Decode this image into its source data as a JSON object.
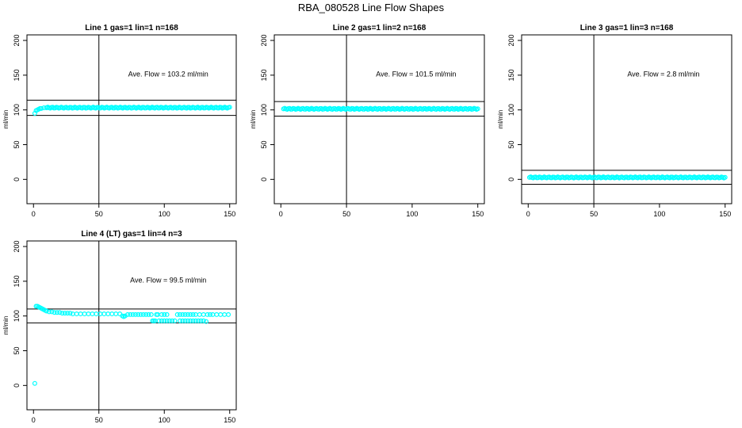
{
  "page": {
    "title": "RBA_080528  Line Flow Shapes"
  },
  "chart_data": [
    {
      "type": "scatter",
      "title": "Line 1 gas=1 lin=1 n=168",
      "ylabel": "ml/min",
      "annotation": "Ave. Flow =  103.2  ml/min",
      "xlim": [
        -5,
        155
      ],
      "ylim": [
        -35,
        208
      ],
      "xticks": [
        0,
        50,
        100,
        150
      ],
      "yticks": [
        0,
        50,
        100,
        150,
        200
      ],
      "vline": 50,
      "hlines": [
        92,
        114
      ],
      "point_color": "#00FFFF",
      "series": [
        {
          "x": [
            1,
            2,
            3,
            4,
            5,
            6,
            8,
            10
          ],
          "y": [
            95,
            99,
            100,
            101,
            102,
            102,
            103,
            103
          ]
        },
        {
          "x_range": [
            10,
            150
          ],
          "count": 150,
          "y": 103.2
        }
      ]
    },
    {
      "type": "scatter",
      "title": "Line 2 gas=1 lin=2 n=168",
      "ylabel": "ml/min",
      "annotation": "Ave. Flow =  101.5  ml/min",
      "xlim": [
        -5,
        155
      ],
      "ylim": [
        -35,
        208
      ],
      "xticks": [
        0,
        50,
        100,
        150
      ],
      "yticks": [
        0,
        50,
        100,
        150,
        200
      ],
      "vline": 50,
      "hlines": [
        91,
        112
      ],
      "point_color": "#00FFFF",
      "series": [
        {
          "x_range": [
            2,
            150
          ],
          "count": 160,
          "y": 101.5
        }
      ]
    },
    {
      "type": "scatter",
      "title": "Line 3 gas=1 lin=3 n=168",
      "ylabel": "ml/min",
      "annotation": "Ave. Flow =  2.8  ml/min",
      "xlim": [
        -5,
        155
      ],
      "ylim": [
        -35,
        208
      ],
      "xticks": [
        0,
        50,
        100,
        150
      ],
      "yticks": [
        0,
        50,
        100,
        150,
        200
      ],
      "vline": 50,
      "hlines": [
        -7,
        13
      ],
      "point_color": "#00FFFF",
      "series": [
        {
          "x_range": [
            1,
            150
          ],
          "count": 160,
          "y": 2.8
        }
      ]
    },
    {
      "type": "scatter",
      "title": "Line 4 (LT) gas=1 lin=4 n=3",
      "ylabel": "ml/min",
      "annotation": "Ave. Flow =  99.5  ml/min",
      "xlim": [
        -5,
        155
      ],
      "ylim": [
        -35,
        208
      ],
      "xticks": [
        0,
        50,
        100,
        150
      ],
      "yticks": [
        0,
        50,
        100,
        150,
        200
      ],
      "vline": 50,
      "hlines": [
        90,
        110
      ],
      "point_color": "#00FFFF",
      "series": [
        {
          "x": [
            1
          ],
          "y": [
            3
          ]
        },
        {
          "x": [
            2,
            3,
            4,
            5,
            6,
            7,
            8,
            9,
            10,
            12,
            14,
            16,
            18,
            20,
            22,
            24,
            26,
            28,
            30,
            33,
            36,
            39,
            42,
            45,
            48,
            51,
            54,
            57,
            60,
            63,
            66
          ],
          "y": [
            114,
            114,
            113,
            112,
            111,
            110,
            109,
            108,
            107,
            106,
            106,
            105,
            105,
            105,
            104,
            104,
            104,
            104,
            103,
            103,
            103,
            103,
            103,
            103,
            103,
            103,
            103,
            103,
            103,
            103,
            103
          ]
        },
        {
          "x": [
            68,
            69,
            70,
            72,
            74,
            76,
            78,
            80,
            82,
            84,
            86,
            88,
            90,
            94,
            95,
            98,
            100,
            102,
            110,
            112,
            114,
            116,
            118,
            120,
            122,
            124,
            127,
            130,
            133,
            135,
            137,
            140,
            143,
            146,
            149
          ],
          "y": [
            100,
            99,
            100,
            102,
            102,
            102,
            102,
            102,
            102,
            102,
            102,
            102,
            102,
            102,
            102,
            102,
            102,
            102,
            102,
            102,
            102,
            102,
            102,
            102,
            102,
            102,
            102,
            102,
            102,
            102,
            102,
            102,
            102,
            102,
            102
          ]
        },
        {
          "x": [
            91,
            92,
            93,
            96,
            98,
            100,
            102,
            104,
            106,
            108,
            112,
            114,
            116,
            118,
            120,
            122,
            124,
            126,
            128,
            130,
            132
          ],
          "y": [
            93,
            93,
            93,
            93,
            93,
            93,
            93,
            93,
            93,
            93,
            93,
            93,
            93,
            93,
            93,
            93,
            93,
            93,
            93,
            93,
            92
          ]
        }
      ]
    }
  ]
}
